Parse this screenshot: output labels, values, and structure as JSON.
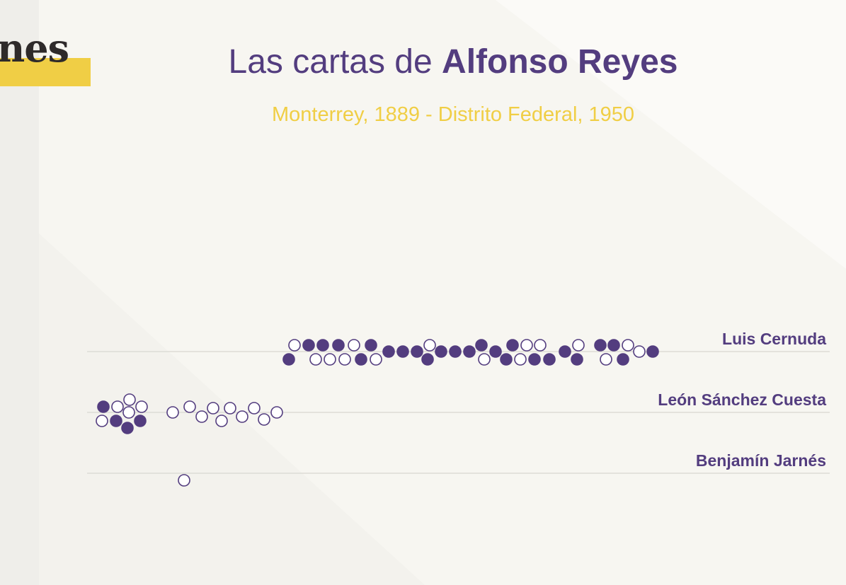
{
  "logo": {
    "text": "nes"
  },
  "header": {
    "title_prefix": "Las cartas de ",
    "title_name": "Alfonso Reyes",
    "subtitle": "Monterrey, 1889 - Distrito Federal, 1950"
  },
  "colors": {
    "purple": "#533d7f",
    "yellow": "#f0ce45",
    "background": "#f7f6f1"
  },
  "chart_data": {
    "type": "scatter",
    "variant": "beeswarm",
    "title": "",
    "xlabel": "",
    "ylabel": "",
    "x_axis_visible": false,
    "grid": "horizontal row lines",
    "legend": "none",
    "marker_encoding": "filled circle and hollow circle (meaning not labeled)",
    "rows": [
      "Luis Cernuda",
      "León Sánchez Cuesta",
      "Benjamín Jarnés"
    ],
    "series": [
      {
        "row": "Luis Cernuda",
        "points": [
          {
            "x": 408,
            "lane": -1.1,
            "filled": true
          },
          {
            "x": 416,
            "lane": 0.9,
            "filled": false
          },
          {
            "x": 436,
            "lane": 0.9,
            "filled": true
          },
          {
            "x": 446,
            "lane": -1.1,
            "filled": false
          },
          {
            "x": 456,
            "lane": 0.9,
            "filled": true
          },
          {
            "x": 466,
            "lane": -1.1,
            "filled": false
          },
          {
            "x": 478,
            "lane": 0.9,
            "filled": true
          },
          {
            "x": 487,
            "lane": -1.1,
            "filled": false
          },
          {
            "x": 500,
            "lane": 0.9,
            "filled": false
          },
          {
            "x": 510,
            "lane": -1.1,
            "filled": true
          },
          {
            "x": 524,
            "lane": 0.9,
            "filled": true
          },
          {
            "x": 531,
            "lane": -1.1,
            "filled": false
          },
          {
            "x": 549,
            "lane": 0,
            "filled": true
          },
          {
            "x": 569,
            "lane": 0,
            "filled": true
          },
          {
            "x": 589,
            "lane": 0,
            "filled": true
          },
          {
            "x": 604,
            "lane": -1.1,
            "filled": true
          },
          {
            "x": 607,
            "lane": 0.9,
            "filled": false
          },
          {
            "x": 623,
            "lane": 0,
            "filled": true
          },
          {
            "x": 643,
            "lane": 0,
            "filled": true
          },
          {
            "x": 663,
            "lane": 0,
            "filled": true
          },
          {
            "x": 680,
            "lane": 0.9,
            "filled": true
          },
          {
            "x": 684,
            "lane": -1.1,
            "filled": false
          },
          {
            "x": 700,
            "lane": 0,
            "filled": true
          },
          {
            "x": 715,
            "lane": -1.1,
            "filled": true
          },
          {
            "x": 724,
            "lane": 0.9,
            "filled": true
          },
          {
            "x": 735,
            "lane": -1.1,
            "filled": false
          },
          {
            "x": 744,
            "lane": 0.9,
            "filled": false
          },
          {
            "x": 755,
            "lane": -1.1,
            "filled": true
          },
          {
            "x": 763,
            "lane": 0.9,
            "filled": false
          },
          {
            "x": 776,
            "lane": -1.1,
            "filled": true
          },
          {
            "x": 798,
            "lane": 0,
            "filled": true
          },
          {
            "x": 815,
            "lane": -1.1,
            "filled": true
          },
          {
            "x": 817,
            "lane": 0.9,
            "filled": false
          },
          {
            "x": 848,
            "lane": 0.9,
            "filled": true
          },
          {
            "x": 856,
            "lane": -1.1,
            "filled": false
          },
          {
            "x": 867,
            "lane": 0.9,
            "filled": true
          },
          {
            "x": 880,
            "lane": -1.1,
            "filled": true
          },
          {
            "x": 887,
            "lane": 0.9,
            "filled": false
          },
          {
            "x": 903,
            "lane": 0,
            "filled": false
          },
          {
            "x": 922,
            "lane": 0,
            "filled": true
          }
        ]
      },
      {
        "row": "León Sánchez Cuesta",
        "points": [
          {
            "x": 146,
            "lane": 0.8,
            "filled": true
          },
          {
            "x": 144,
            "lane": -1.2,
            "filled": false
          },
          {
            "x": 164,
            "lane": -1.2,
            "filled": true
          },
          {
            "x": 166,
            "lane": 0.8,
            "filled": false
          },
          {
            "x": 180,
            "lane": -2.2,
            "filled": true
          },
          {
            "x": 182,
            "lane": 0,
            "filled": false
          },
          {
            "x": 183,
            "lane": 1.8,
            "filled": false
          },
          {
            "x": 198,
            "lane": -1.2,
            "filled": true
          },
          {
            "x": 200,
            "lane": 0.8,
            "filled": false
          },
          {
            "x": 244,
            "lane": 0,
            "filled": false
          },
          {
            "x": 268,
            "lane": 0.8,
            "filled": false
          },
          {
            "x": 285,
            "lane": -0.6,
            "filled": false
          },
          {
            "x": 301,
            "lane": 0.6,
            "filled": false
          },
          {
            "x": 313,
            "lane": -1.2,
            "filled": false
          },
          {
            "x": 325,
            "lane": 0.6,
            "filled": false
          },
          {
            "x": 342,
            "lane": -0.6,
            "filled": false
          },
          {
            "x": 359,
            "lane": 0.6,
            "filled": false
          },
          {
            "x": 373,
            "lane": -1.0,
            "filled": false
          },
          {
            "x": 391,
            "lane": 0,
            "filled": false
          }
        ]
      },
      {
        "row": "Benjamín Jarnés",
        "points": [
          {
            "x": 260,
            "lane": -1.0,
            "filled": false
          }
        ]
      }
    ]
  }
}
